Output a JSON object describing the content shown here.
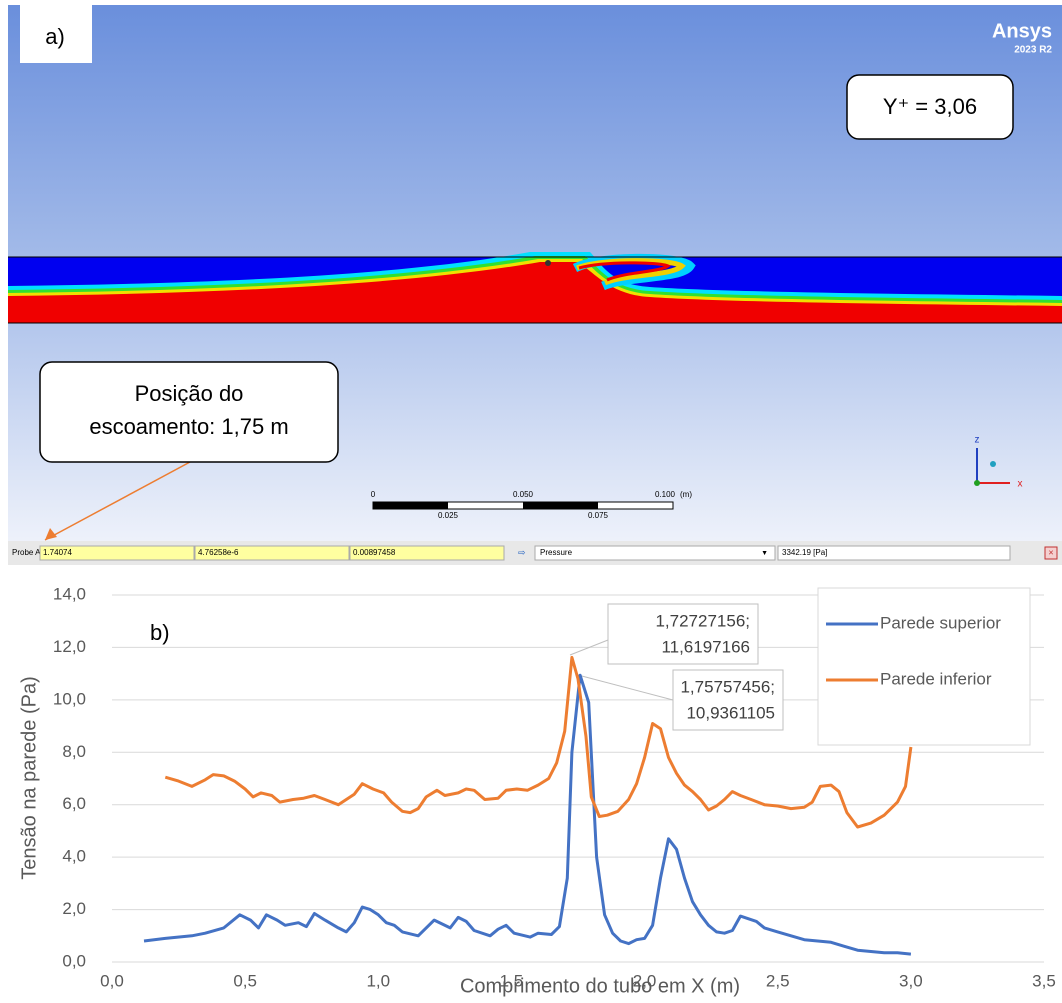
{
  "simulation_panel": {
    "panel_label": "a)",
    "brand": "Ansys",
    "version": "2023 R2",
    "yplus": "Y⁺ = 3,06",
    "callout_lines": [
      "Posição do",
      "escoamento: 1,75 m"
    ],
    "scale_top": [
      "0",
      "0.050",
      "0.100",
      "(m)"
    ],
    "scale_bottom": [
      "0.025",
      "0.075"
    ],
    "axes": [
      "z",
      "x"
    ],
    "probe": {
      "label": "Probe At",
      "fields": [
        "1.74074",
        "4.76258e-6",
        "0.00897458"
      ],
      "variable": "Pressure",
      "result": "3342.19 [Pa]"
    }
  },
  "chart_data": {
    "type": "line",
    "panel_label": "b)",
    "x_label": "Comprimento do tubo em X (m)",
    "y_label": "Tensão na parede (Pa)",
    "xlim": [
      0,
      3.5
    ],
    "ylim": [
      0,
      14
    ],
    "grid": true,
    "legend": "top-right",
    "xticks": [
      {
        "value": 0,
        "label": "0,0"
      },
      {
        "value": 0.5,
        "label": "0,5"
      },
      {
        "value": 1,
        "label": "1,0"
      },
      {
        "value": 1.5,
        "label": "1,5"
      },
      {
        "value": 2,
        "label": "2,0"
      },
      {
        "value": 2.5,
        "label": "2,5"
      },
      {
        "value": 3,
        "label": "3,0"
      },
      {
        "value": 3.5,
        "label": "3,5"
      }
    ],
    "yticks": [
      {
        "value": 0,
        "label": "0,0"
      },
      {
        "value": 2,
        "label": "2,0"
      },
      {
        "value": 4,
        "label": "4,0"
      },
      {
        "value": 6,
        "label": "6,0"
      },
      {
        "value": 8,
        "label": "8,0"
      },
      {
        "value": 10,
        "label": "10,0"
      },
      {
        "value": 12,
        "label": "12,0"
      },
      {
        "value": 14,
        "label": "14,0"
      }
    ],
    "series": [
      {
        "name": "Parede superior",
        "color": "#4472c4",
        "x": [
          0.12,
          0.2,
          0.3,
          0.35,
          0.42,
          0.48,
          0.52,
          0.55,
          0.58,
          0.62,
          0.65,
          0.7,
          0.73,
          0.76,
          0.8,
          0.85,
          0.88,
          0.91,
          0.94,
          0.97,
          1.0,
          1.03,
          1.06,
          1.09,
          1.15,
          1.21,
          1.27,
          1.3,
          1.33,
          1.36,
          1.42,
          1.45,
          1.48,
          1.51,
          1.57,
          1.6,
          1.65,
          1.68,
          1.71,
          1.727,
          1.758,
          1.79,
          1.82,
          1.85,
          1.88,
          1.91,
          1.94,
          1.97,
          2.0,
          2.03,
          2.06,
          2.09,
          2.12,
          2.15,
          2.18,
          2.21,
          2.24,
          2.27,
          2.3,
          2.33,
          2.36,
          2.42,
          2.45,
          2.5,
          2.55,
          2.6,
          2.65,
          2.7,
          2.75,
          2.8,
          2.85,
          2.9,
          2.95,
          3.0
        ],
        "values": [
          0.8,
          0.9,
          1.0,
          1.1,
          1.3,
          1.8,
          1.6,
          1.3,
          1.8,
          1.6,
          1.4,
          1.5,
          1.35,
          1.85,
          1.6,
          1.3,
          1.15,
          1.5,
          2.1,
          2.0,
          1.8,
          1.5,
          1.4,
          1.15,
          1.0,
          1.6,
          1.3,
          1.7,
          1.55,
          1.2,
          1.0,
          1.25,
          1.4,
          1.1,
          0.95,
          1.1,
          1.05,
          1.35,
          3.2,
          8.0,
          10.94,
          9.9,
          4.0,
          1.8,
          1.1,
          0.8,
          0.7,
          0.85,
          0.9,
          1.4,
          3.2,
          4.7,
          4.3,
          3.2,
          2.3,
          1.8,
          1.4,
          1.15,
          1.1,
          1.2,
          1.75,
          1.55,
          1.3,
          1.15,
          1.0,
          0.85,
          0.8,
          0.75,
          0.6,
          0.45,
          0.4,
          0.35,
          0.35,
          0.3
        ]
      },
      {
        "name": "Parede inferior",
        "color": "#ed7d31",
        "x": [
          0.2,
          0.25,
          0.3,
          0.35,
          0.38,
          0.42,
          0.46,
          0.5,
          0.53,
          0.56,
          0.6,
          0.63,
          0.68,
          0.72,
          0.76,
          0.8,
          0.85,
          0.88,
          0.91,
          0.94,
          0.98,
          1.02,
          1.05,
          1.09,
          1.12,
          1.15,
          1.18,
          1.22,
          1.25,
          1.3,
          1.33,
          1.36,
          1.4,
          1.45,
          1.48,
          1.52,
          1.56,
          1.6,
          1.64,
          1.67,
          1.7,
          1.727,
          1.75,
          1.78,
          1.8,
          1.83,
          1.86,
          1.9,
          1.94,
          1.97,
          2.0,
          2.03,
          2.06,
          2.09,
          2.12,
          2.15,
          2.18,
          2.21,
          2.24,
          2.27,
          2.3,
          2.33,
          2.36,
          2.4,
          2.45,
          2.5,
          2.55,
          2.6,
          2.63,
          2.66,
          2.7,
          2.73,
          2.76,
          2.8,
          2.85,
          2.9,
          2.95,
          2.98,
          3.0
        ],
        "values": [
          7.05,
          6.9,
          6.7,
          6.95,
          7.15,
          7.1,
          6.9,
          6.6,
          6.3,
          6.45,
          6.35,
          6.1,
          6.2,
          6.25,
          6.35,
          6.2,
          6.0,
          6.2,
          6.4,
          6.8,
          6.6,
          6.45,
          6.1,
          5.75,
          5.7,
          5.85,
          6.3,
          6.55,
          6.35,
          6.45,
          6.6,
          6.55,
          6.2,
          6.25,
          6.55,
          6.6,
          6.55,
          6.75,
          7.0,
          7.6,
          8.8,
          11.62,
          10.8,
          8.6,
          6.3,
          5.55,
          5.6,
          5.75,
          6.2,
          6.8,
          7.8,
          9.1,
          8.9,
          7.8,
          7.2,
          6.75,
          6.5,
          6.2,
          5.8,
          5.95,
          6.2,
          6.5,
          6.35,
          6.2,
          6.0,
          5.95,
          5.85,
          5.9,
          6.1,
          6.7,
          6.75,
          6.5,
          5.7,
          5.15,
          5.3,
          5.6,
          6.1,
          6.7,
          8.2
        ]
      }
    ],
    "annotations": [
      {
        "lines": [
          "1,72727156;",
          "11,6197166"
        ]
      },
      {
        "lines": [
          "1,75757456;",
          "10,9361105"
        ]
      }
    ]
  }
}
